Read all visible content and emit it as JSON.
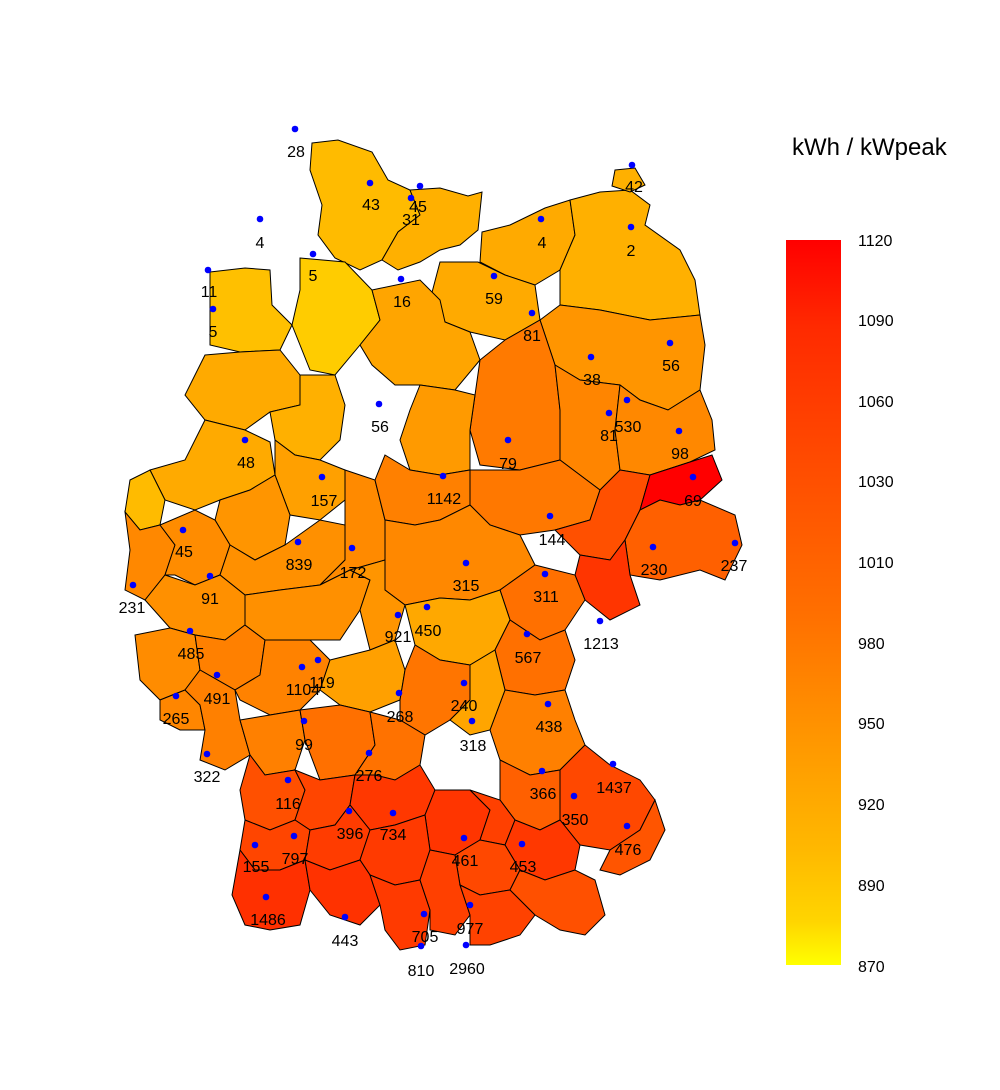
{
  "legend": {
    "title": "kWh / kWpeak",
    "ticks": [
      "1120",
      "1090",
      "1060",
      "1030",
      "1010",
      "980",
      "950",
      "920",
      "890",
      "870"
    ],
    "colors": {
      "high": "#ff0000",
      "mid": "#ff8000",
      "low": "#ffff00"
    }
  },
  "map": {
    "point_color": "#0000ff",
    "border_color": "#000000",
    "labels": [
      "28",
      "43",
      "31",
      "45",
      "42",
      "4",
      "4",
      "2",
      "11",
      "5",
      "5",
      "16",
      "59",
      "81",
      "56",
      "38",
      "56",
      "81",
      "530",
      "98",
      "79",
      "48",
      "157",
      "1142",
      "69",
      "144",
      "45",
      "839",
      "172",
      "315",
      "311",
      "230",
      "237",
      "231",
      "91",
      "921",
      "450",
      "1213",
      "485",
      "567",
      "491",
      "1104",
      "119",
      "265",
      "240",
      "438",
      "268",
      "318",
      "99",
      "322",
      "276",
      "116",
      "366",
      "1437",
      "350",
      "396",
      "734",
      "476",
      "155",
      "797",
      "461",
      "453",
      "1486",
      "443",
      "705",
      "977",
      "810",
      "2960"
    ]
  }
}
